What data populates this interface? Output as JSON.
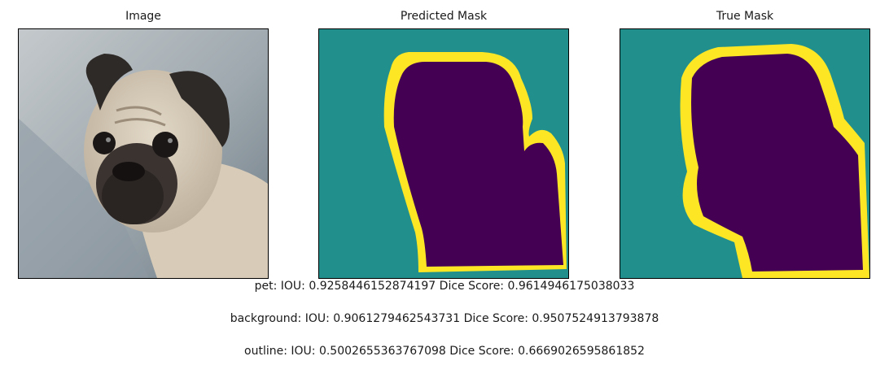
{
  "panels": [
    {
      "title": "Image"
    },
    {
      "title": "Predicted Mask"
    },
    {
      "title": "True Mask"
    }
  ],
  "metrics": [
    {
      "text": "pet: IOU: 0.9258446152874197 Dice Score: 0.9614946175038033"
    },
    {
      "text": "background: IOU: 0.9061279462543731 Dice Score: 0.9507524913793878"
    },
    {
      "text": "outline: IOU: 0.5002655363767098 Dice Score: 0.6669026595861852"
    }
  ],
  "colors": {
    "mask_background": "#21908d",
    "mask_pet": "#440154",
    "mask_outline": "#fde725"
  }
}
